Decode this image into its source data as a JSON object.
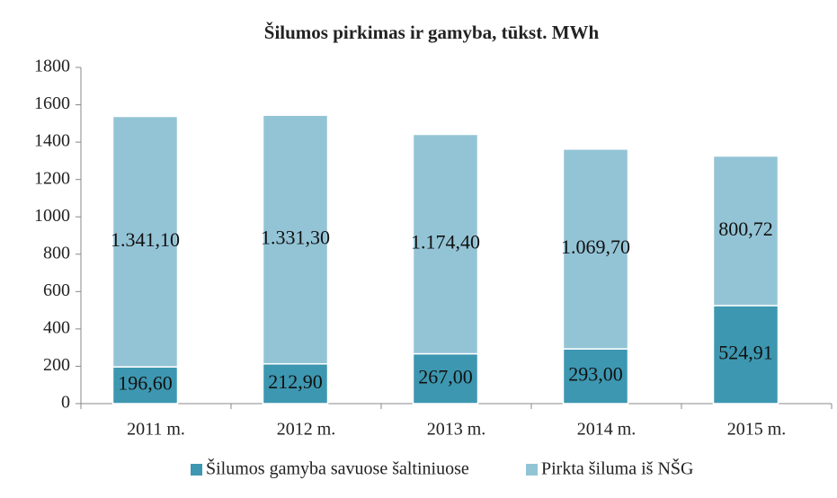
{
  "chart_data": {
    "type": "stacked_bar",
    "title": "Šilumos pirkimas ir gamyba, tūkst. MWh",
    "categories": [
      "2011 m.",
      "2012 m.",
      "2013 m.",
      "2014 m.",
      "2015 m."
    ],
    "series": [
      {
        "name": "Šilumos gamyba savuose šaltiniuose",
        "color": "#3d97b1",
        "values": [
          196.6,
          212.9,
          267.0,
          293.0,
          524.91
        ],
        "value_labels": [
          "196,60",
          "212,90",
          "267,00",
          "293,00",
          "524,91"
        ]
      },
      {
        "name": "Pirkta šiluma iš NŠG",
        "color": "#93c4d6",
        "values": [
          1341.1,
          1331.3,
          1174.4,
          1069.7,
          800.72
        ],
        "value_labels": [
          "1.341,10",
          "1.331,30",
          "1.174,40",
          "1.069,70",
          "800,72"
        ]
      }
    ],
    "ylim": [
      0,
      1800
    ],
    "yticks": [
      0,
      200,
      400,
      600,
      800,
      1000,
      1200,
      1400,
      1600,
      1800
    ],
    "legend": "bottom"
  }
}
